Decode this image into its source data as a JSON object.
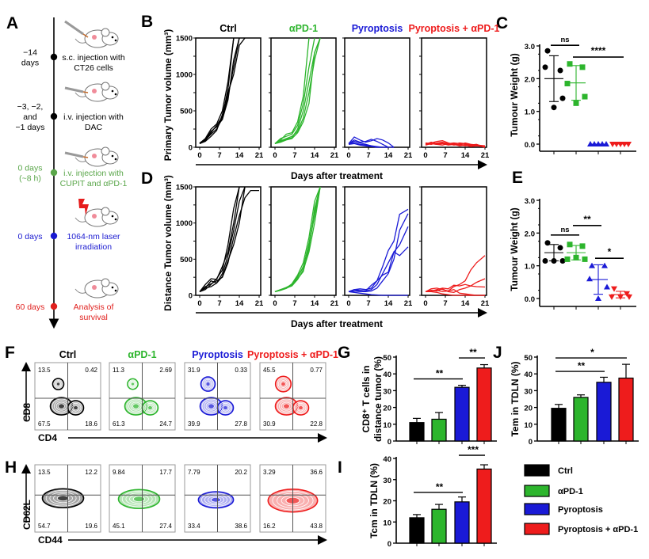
{
  "panel_labels": {
    "A": "A",
    "B": "B",
    "C": "C",
    "D": "D",
    "E": "E",
    "F": "F",
    "G": "G",
    "H": "H",
    "I": "I",
    "J": "J"
  },
  "groups": [
    {
      "name": "Ctrl",
      "color": "#000000"
    },
    {
      "name": "αPD-1",
      "color": "#2db52d"
    },
    {
      "name": "Pyroptosis",
      "color": "#1a1ad6"
    },
    {
      "name": "Pyroptosis + αPD-1",
      "color": "#ee1c1c"
    }
  ],
  "timeline": {
    "steps": [
      {
        "time": [
          "−14",
          "days"
        ],
        "desc": [
          "s.c. injection with",
          "CT26 cells"
        ],
        "color": "#000000",
        "icon": "syringe-icon"
      },
      {
        "time": [
          "−3, −2,",
          "and",
          "−1 days"
        ],
        "desc": [
          "i.v. injection with",
          "DAC"
        ],
        "color": "#000000",
        "icon": "syringe-icon"
      },
      {
        "time": [
          "0 days",
          "(~8 h)"
        ],
        "desc": [
          "i.v. injection with",
          "CUPIT and αPD-1"
        ],
        "color": "#5aa64a",
        "icon": "syringe-icon"
      },
      {
        "time": [
          "0 days"
        ],
        "desc": [
          "1064-nm laser",
          "irradiation"
        ],
        "color": "#1a1ad0",
        "icon": "laser-bolt-icon"
      },
      {
        "time": [
          "60 days"
        ],
        "desc": [
          "Analysis of",
          "survival"
        ],
        "color": "#e0201e",
        "icon": "mouse-icon"
      }
    ]
  },
  "chart_data": [
    {
      "panel": "B",
      "type": "line",
      "ylabel": "Primary Tumor volume (mm³)",
      "xlabel": "Days after  treatment",
      "ylim": [
        0,
        1500
      ],
      "yticks": [
        "0",
        "500",
        "1000",
        "1500"
      ],
      "xlim": [
        0,
        21
      ],
      "xticks": [
        "0",
        "7",
        "14",
        "21"
      ],
      "days": [
        0,
        2,
        4,
        6,
        8,
        10,
        12,
        14,
        16,
        18,
        21
      ],
      "groups": [
        {
          "name": "Ctrl",
          "series": [
            [
              50,
              90,
              200,
              300,
              420,
              800,
              1500
            ],
            [
              50,
              110,
              220,
              280,
              380,
              650,
              1200,
              1500
            ],
            [
              60,
              100,
              180,
              250,
              400,
              700,
              1100,
              1500
            ],
            [
              50,
              80,
              150,
              230,
              450,
              750,
              1000,
              1400,
              1500
            ],
            [
              55,
              120,
              250,
              320,
              500,
              900,
              1500
            ]
          ]
        },
        {
          "name": "αPD-1",
          "series": [
            [
              50,
              100,
              180,
              200,
              350,
              700,
              1500
            ],
            [
              50,
              120,
              150,
              180,
              300,
              600,
              1100,
              1500
            ],
            [
              50,
              80,
              110,
              130,
              250,
              500,
              900,
              1300,
              1500
            ],
            [
              50,
              90,
              120,
              150,
              220,
              400,
              750,
              1200,
              1500
            ],
            [
              50,
              70,
              100,
              120,
              200,
              350,
              600,
              1300,
              1500
            ]
          ]
        },
        {
          "name": "Pyroptosis",
          "series": [
            [
              50,
              140,
              100,
              70,
              90,
              120,
              100,
              60,
              0
            ],
            [
              50,
              80,
              60,
              40,
              20,
              0,
              0,
              0,
              0
            ],
            [
              50,
              60,
              40,
              30,
              20,
              10,
              0
            ],
            [
              50,
              100,
              70,
              80,
              110,
              80,
              40,
              0
            ],
            [
              40,
              50,
              30,
              20,
              10,
              0
            ]
          ]
        },
        {
          "name": "Pyroptosis + αPD-1",
          "series": [
            [
              50,
              60,
              80,
              90,
              60,
              40,
              60,
              50,
              30,
              40,
              0
            ],
            [
              40,
              70,
              50,
              60,
              40,
              50,
              30,
              60,
              40,
              30,
              20
            ],
            [
              60,
              50,
              40,
              30,
              50,
              30,
              40,
              20,
              30,
              20,
              10
            ],
            [
              50,
              40,
              60,
              70,
              50,
              60,
              50,
              40,
              20,
              30,
              0
            ],
            [
              30,
              50,
              40,
              50,
              30,
              40,
              20,
              30,
              10,
              20,
              10
            ]
          ]
        }
      ]
    },
    {
      "panel": "D",
      "type": "line",
      "ylabel": "Distance Tumor volume (mm³)",
      "xlabel": "Days after  treatment",
      "ylim": [
        0,
        1500
      ],
      "yticks": [
        "0",
        "500",
        "1000",
        "1500"
      ],
      "xlim": [
        0,
        21
      ],
      "xticks": [
        "0",
        "7",
        "14",
        "21"
      ],
      "days": [
        0,
        2,
        4,
        6,
        8,
        10,
        12,
        14,
        16,
        18,
        21
      ],
      "groups": [
        {
          "name": "Ctrl",
          "series": [
            [
              50,
              150,
              230,
              220,
              400,
              600,
              1000,
              1500
            ],
            [
              50,
              100,
              200,
              170,
              300,
              550,
              900,
              1300,
              1500
            ],
            [
              50,
              120,
              160,
              200,
              250,
              450,
              800,
              1100,
              1350,
              1450,
              1450
            ],
            [
              50,
              80,
              150,
              230,
              350,
              700,
              1200,
              1500
            ],
            [
              50,
              100,
              120,
              170,
              260,
              480,
              700,
              1000,
              1500
            ]
          ]
        },
        {
          "name": "αPD-1",
          "series": [
            [
              50,
              80,
              110,
              150,
              250,
              400,
              700,
              1100,
              1500
            ],
            [
              50,
              70,
              100,
              130,
              220,
              350,
              600,
              1000,
              1500
            ],
            [
              50,
              75,
              105,
              140,
              230,
              330,
              650,
              1200,
              1500
            ],
            [
              50,
              80,
              100,
              160,
              280,
              450,
              800,
              1300,
              1500
            ],
            [
              50,
              70,
              95,
              145,
              260,
              380,
              720,
              1150,
              1500
            ]
          ]
        },
        {
          "name": "Pyroptosis",
          "series": [
            [
              50,
              80,
              90,
              80,
              100,
              200,
              400,
              620,
              750,
              1120,
              1190
            ],
            [
              50,
              60,
              70,
              60,
              80,
              150,
              300,
              450,
              600,
              700,
              950
            ],
            [
              50,
              80,
              70,
              60,
              140,
              200,
              280,
              320,
              600,
              550,
              670
            ],
            [
              50,
              40,
              30,
              20,
              10,
              5,
              0,
              0,
              0,
              0,
              0
            ],
            [
              50,
              60,
              50,
              50,
              60,
              100,
              200,
              300,
              500,
              900,
              1130
            ]
          ]
        },
        {
          "name": "Pyroptosis + αPD-1",
          "series": [
            [
              50,
              90,
              100,
              80,
              60,
              120,
              150,
              200,
              350,
              450,
              550
            ],
            [
              50,
              60,
              80,
              100,
              90,
              140,
              130,
              150,
              130,
              120,
              115
            ],
            [
              50,
              70,
              60,
              90,
              50,
              40,
              80,
              100,
              130,
              180,
              230
            ],
            [
              50,
              50,
              40,
              20,
              10,
              0,
              0,
              0,
              0,
              0,
              0
            ],
            [
              50,
              60,
              70,
              50,
              60,
              80,
              30,
              20,
              10,
              0,
              0
            ]
          ]
        }
      ]
    },
    {
      "panel": "C",
      "type": "scatter",
      "ylabel": "Tumour Weight (g)",
      "ylim": [
        0,
        3
      ],
      "yticks": [
        "0.0",
        "1.0",
        "2.0",
        "3.0"
      ],
      "groups": [
        {
          "name": "Ctrl",
          "marker": "circle",
          "values": [
            2.85,
            2.25,
            2.35,
            1.4,
            1.12
          ],
          "mean": 2.0,
          "sd": 0.7
        },
        {
          "name": "αPD-1",
          "marker": "square",
          "values": [
            2.45,
            2.35,
            1.85,
            1.45,
            1.25
          ],
          "mean": 1.87,
          "sd": 0.53
        },
        {
          "name": "Pyroptosis",
          "marker": "triangle-up",
          "values": [
            0,
            0,
            0,
            0,
            0
          ],
          "mean": 0,
          "sd": 0
        },
        {
          "name": "Pyroptosis + αPD-1",
          "marker": "triangle-down",
          "values": [
            0,
            0,
            0,
            0,
            0
          ],
          "mean": 0,
          "sd": 0
        }
      ],
      "significance": [
        {
          "from": 0,
          "to": 1,
          "y": 3.02,
          "label": "ns"
        },
        {
          "from": 1,
          "to": 3,
          "y": 2.66,
          "label": "****"
        }
      ]
    },
    {
      "panel": "E",
      "type": "scatter",
      "ylabel": "Tumour Weight (g)",
      "ylim": [
        0,
        3
      ],
      "yticks": [
        "0.0",
        "1.0",
        "2.0",
        "3.0"
      ],
      "groups": [
        {
          "name": "Ctrl",
          "marker": "circle",
          "values": [
            1.7,
            1.55,
            1.15,
            1.15,
            1.15
          ],
          "mean": 1.4,
          "sd": 0.25
        },
        {
          "name": "αPD-1",
          "marker": "square",
          "values": [
            1.65,
            1.6,
            1.2,
            1.2,
            1.25
          ],
          "mean": 1.4,
          "sd": 0.22
        },
        {
          "name": "Pyroptosis",
          "marker": "triangle-up",
          "values": [
            1.0,
            1.0,
            0.6,
            0.35,
            0.0
          ],
          "mean": 0.58,
          "sd": 0.45
        },
        {
          "name": "Pyroptosis + αPD-1",
          "marker": "triangle-down",
          "values": [
            0.3,
            0.15,
            0.05,
            0.05,
            0.05
          ],
          "mean": 0.12,
          "sd": 0.1
        }
      ],
      "significance": [
        {
          "from": 0,
          "to": 1,
          "y": 1.94,
          "label": "ns"
        },
        {
          "from": 1,
          "to": 2,
          "y": 2.23,
          "label": "**"
        },
        {
          "from": 2,
          "to": 3,
          "y": 1.23,
          "label": "*"
        }
      ]
    },
    {
      "panel": "F",
      "type": "flow-contour",
      "xlabel": "CD4",
      "ylabel": "CD8",
      "plots": [
        {
          "name": "Ctrl",
          "quadrants": {
            "ul": "13.5",
            "ur": "0.42",
            "ll": "67.5",
            "lr": "18.6"
          }
        },
        {
          "name": "αPD-1",
          "quadrants": {
            "ul": "11.3",
            "ur": "2.69",
            "ll": "61.3",
            "lr": "24.7"
          }
        },
        {
          "name": "Pyroptosis",
          "quadrants": {
            "ul": "31.9",
            "ur": "0.33",
            "ll": "39.9",
            "lr": "27.8"
          }
        },
        {
          "name": "Pyroptosis + αPD-1",
          "quadrants": {
            "ul": "45.5",
            "ur": "0.77",
            "ll": "30.9",
            "lr": "22.8"
          }
        }
      ]
    },
    {
      "panel": "H",
      "type": "flow-contour",
      "xlabel": "CD44",
      "ylabel": "CD62L",
      "plots": [
        {
          "name": "Ctrl",
          "quadrants": {
            "ul": "13.5",
            "ur": "12.2",
            "ll": "54.7",
            "lr": "19.6"
          }
        },
        {
          "name": "αPD-1",
          "quadrants": {
            "ul": "9.84",
            "ur": "17.7",
            "ll": "45.1",
            "lr": "27.4"
          }
        },
        {
          "name": "Pyroptosis",
          "quadrants": {
            "ul": "7.79",
            "ur": "20.2",
            "ll": "33.4",
            "lr": "38.6"
          }
        },
        {
          "name": "Pyroptosis + αPD-1",
          "quadrants": {
            "ul": "3.29",
            "ur": "36.6",
            "ll": "16.2",
            "lr": "43.8"
          }
        }
      ]
    },
    {
      "panel": "G",
      "type": "bar",
      "ylabel": [
        "CD8⁺ T cells in",
        "distance tumor (%)"
      ],
      "ylim": [
        0,
        50
      ],
      "yticks": [
        "0",
        "10",
        "20",
        "30",
        "40",
        "50"
      ],
      "categories": [
        "Ctrl",
        "αPD-1",
        "Pyroptosis",
        "Pyroptosis + αPD-1"
      ],
      "values": [
        11,
        13,
        32,
        43.5
      ],
      "errors": [
        2.5,
        4,
        1.2,
        2
      ],
      "significance": [
        {
          "from": 0,
          "to": 2,
          "y": 37,
          "label": "**"
        },
        {
          "from": 2,
          "to": 3,
          "y": 49.5,
          "label": "**"
        }
      ]
    },
    {
      "panel": "J",
      "type": "bar",
      "ylabel": [
        "Tem in TDLN (%)"
      ],
      "ylim": [
        0,
        50
      ],
      "yticks": [
        "0",
        "10",
        "20",
        "30",
        "40",
        "50"
      ],
      "categories": [
        "Ctrl",
        "αPD-1",
        "Pyroptosis",
        "Pyroptosis + αPD-1"
      ],
      "values": [
        19.5,
        26,
        35,
        37.5
      ],
      "errors": [
        2.3,
        1.5,
        3,
        8.2
      ],
      "significance": [
        {
          "from": 0,
          "to": 3,
          "y": 49.5,
          "label": "*"
        },
        {
          "from": 0,
          "to": 2,
          "y": 41.5,
          "label": "**"
        }
      ]
    },
    {
      "panel": "I",
      "type": "bar",
      "ylabel": [
        "Tcm in TDLN (%)"
      ],
      "ylim": [
        0,
        40
      ],
      "yticks": [
        "0",
        "10",
        "20",
        "30",
        "40"
      ],
      "categories": [
        "Ctrl",
        "αPD-1",
        "Pyroptosis",
        "Pyroptosis + αPD-1"
      ],
      "values": [
        12,
        16,
        19.5,
        35
      ],
      "errors": [
        1.5,
        2.3,
        2.3,
        2
      ],
      "significance": [
        {
          "from": 0,
          "to": 2,
          "y": 24,
          "label": "**"
        },
        {
          "from": 2,
          "to": 3,
          "y": 41.5,
          "label": "***"
        }
      ]
    }
  ],
  "legend": {
    "items": [
      "Ctrl",
      "αPD-1",
      "Pyroptosis",
      "Pyroptosis + αPD-1"
    ]
  }
}
